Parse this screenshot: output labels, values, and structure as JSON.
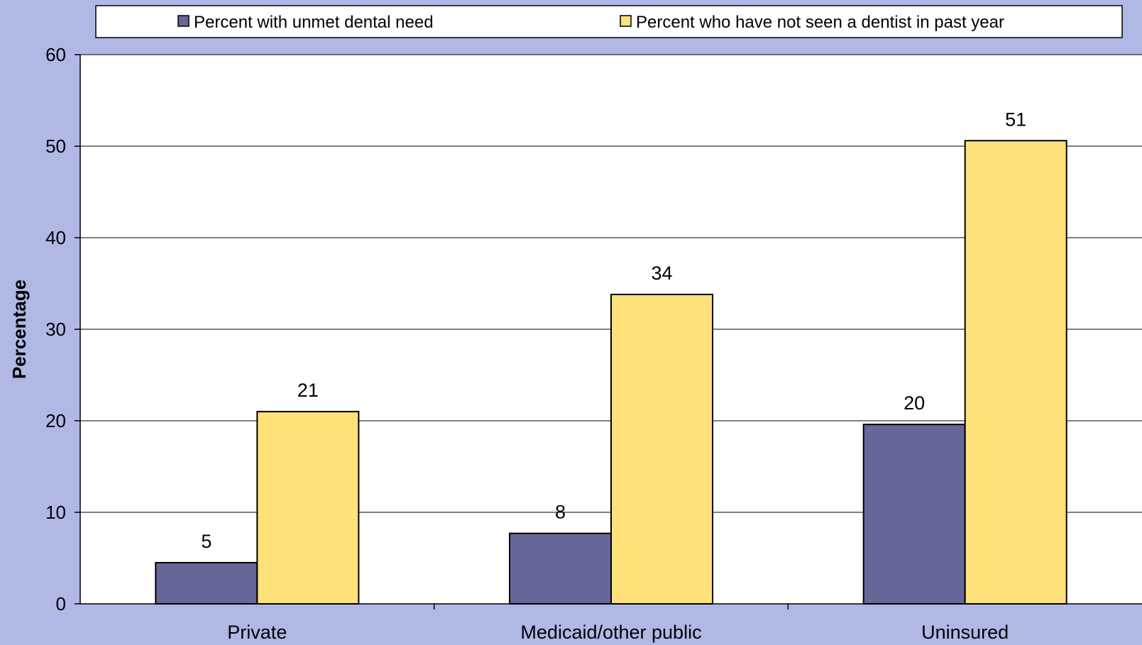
{
  "chart_data": {
    "type": "bar",
    "title": "",
    "xlabel": "",
    "ylabel": "Percentage",
    "ylim": [
      0,
      60
    ],
    "yticks": [
      0,
      10,
      20,
      30,
      40,
      50,
      60
    ],
    "grid": true,
    "legend_position": "top",
    "categories": [
      "Private",
      "Medicaid/other public",
      "Uninsured"
    ],
    "series": [
      {
        "name": "Percent with unmet dental need",
        "color": "#666699",
        "values": [
          4.5,
          7.7,
          19.6
        ],
        "labels": [
          "5",
          "8",
          "20"
        ]
      },
      {
        "name": "Percent who have not seen a dentist in past year",
        "color": "#ffe17a",
        "values": [
          21.0,
          33.8,
          50.6
        ],
        "labels": [
          "21",
          "34",
          "51"
        ]
      }
    ]
  },
  "colors": {
    "background": "#b0b8e6",
    "plot_area": "#ffffff",
    "bar_outline": "#000000"
  }
}
